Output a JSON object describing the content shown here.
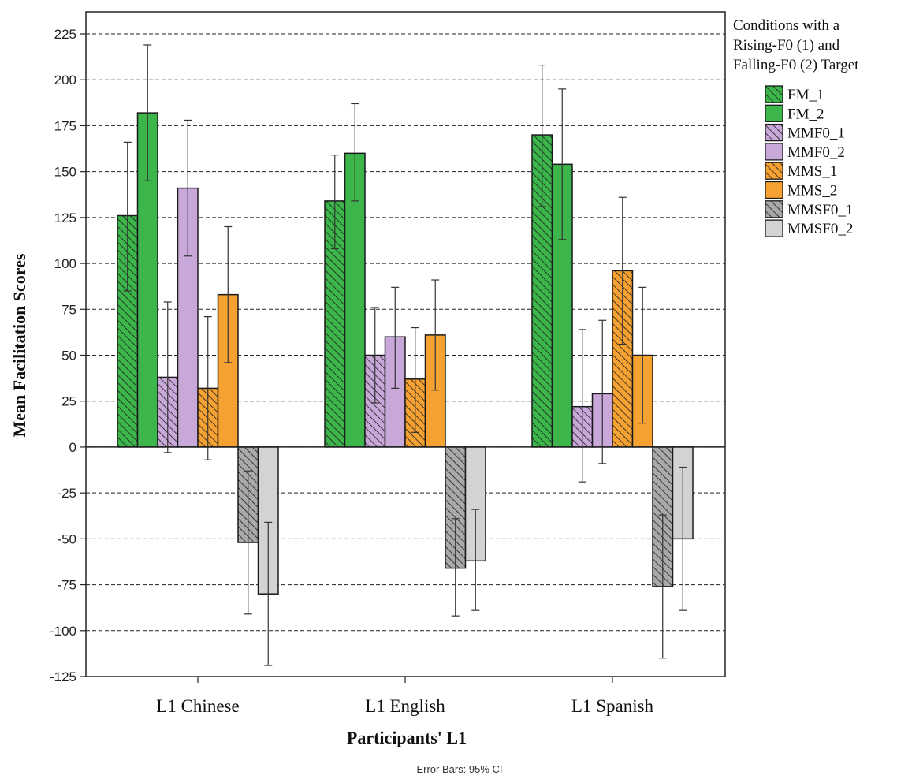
{
  "chart_data": {
    "type": "bar",
    "categories": [
      "L1 Chinese",
      "L1 English",
      "L1 Spanish"
    ],
    "xlabel": "Participants' L1",
    "ylabel": "Mean Facilitation Scores",
    "ylim": [
      -125,
      225
    ],
    "yticks": [
      225,
      200,
      175,
      150,
      125,
      100,
      75,
      50,
      25,
      0,
      -25,
      -50,
      -75,
      -100,
      -125
    ],
    "grid": true,
    "legend_position": "right",
    "legend_title": [
      "Conditions with a",
      "Rising-F0 (1) and",
      "Falling-F0 (2) Target"
    ],
    "footnote": "Error Bars: 95% CI",
    "series": [
      {
        "name": "FM_1",
        "color": "#3cb54a",
        "hatched": true,
        "values": [
          126,
          134,
          170
        ],
        "ci_low": [
          85,
          108,
          131
        ],
        "ci_high": [
          166,
          159,
          208
        ]
      },
      {
        "name": "FM_2",
        "color": "#3cb54a",
        "hatched": false,
        "values": [
          182,
          160,
          154
        ],
        "ci_low": [
          145,
          134,
          113
        ],
        "ci_high": [
          219,
          187,
          195
        ]
      },
      {
        "name": "MMF0_1",
        "color": "#c8a8d8",
        "hatched": true,
        "values": [
          38,
          50,
          22
        ],
        "ci_low": [
          -3,
          24,
          -19
        ],
        "ci_high": [
          79,
          76,
          64
        ]
      },
      {
        "name": "MMF0_2",
        "color": "#c8a8d8",
        "hatched": false,
        "values": [
          141,
          60,
          29
        ],
        "ci_low": [
          104,
          32,
          -9
        ],
        "ci_high": [
          178,
          87,
          69
        ]
      },
      {
        "name": "MMS_1",
        "color": "#f6a233",
        "hatched": true,
        "values": [
          32,
          37,
          96
        ],
        "ci_low": [
          -7,
          8,
          56
        ],
        "ci_high": [
          71,
          65,
          136
        ]
      },
      {
        "name": "MMS_2",
        "color": "#f6a233",
        "hatched": false,
        "values": [
          83,
          61,
          50
        ],
        "ci_low": [
          46,
          31,
          13
        ],
        "ci_high": [
          120,
          91,
          87
        ]
      },
      {
        "name": "MMSF0_1",
        "color": "#a9a9a9",
        "hatched": true,
        "values": [
          -52,
          -66,
          -76
        ],
        "ci_low": [
          -91,
          -92,
          -115
        ],
        "ci_high": [
          -13,
          -39,
          -37
        ]
      },
      {
        "name": "MMSF0_2",
        "color": "#d3d3d3",
        "hatched": false,
        "values": [
          -80,
          -62,
          -50
        ],
        "ci_low": [
          -119,
          -89,
          -89
        ],
        "ci_high": [
          -41,
          -34,
          -11
        ]
      }
    ]
  }
}
